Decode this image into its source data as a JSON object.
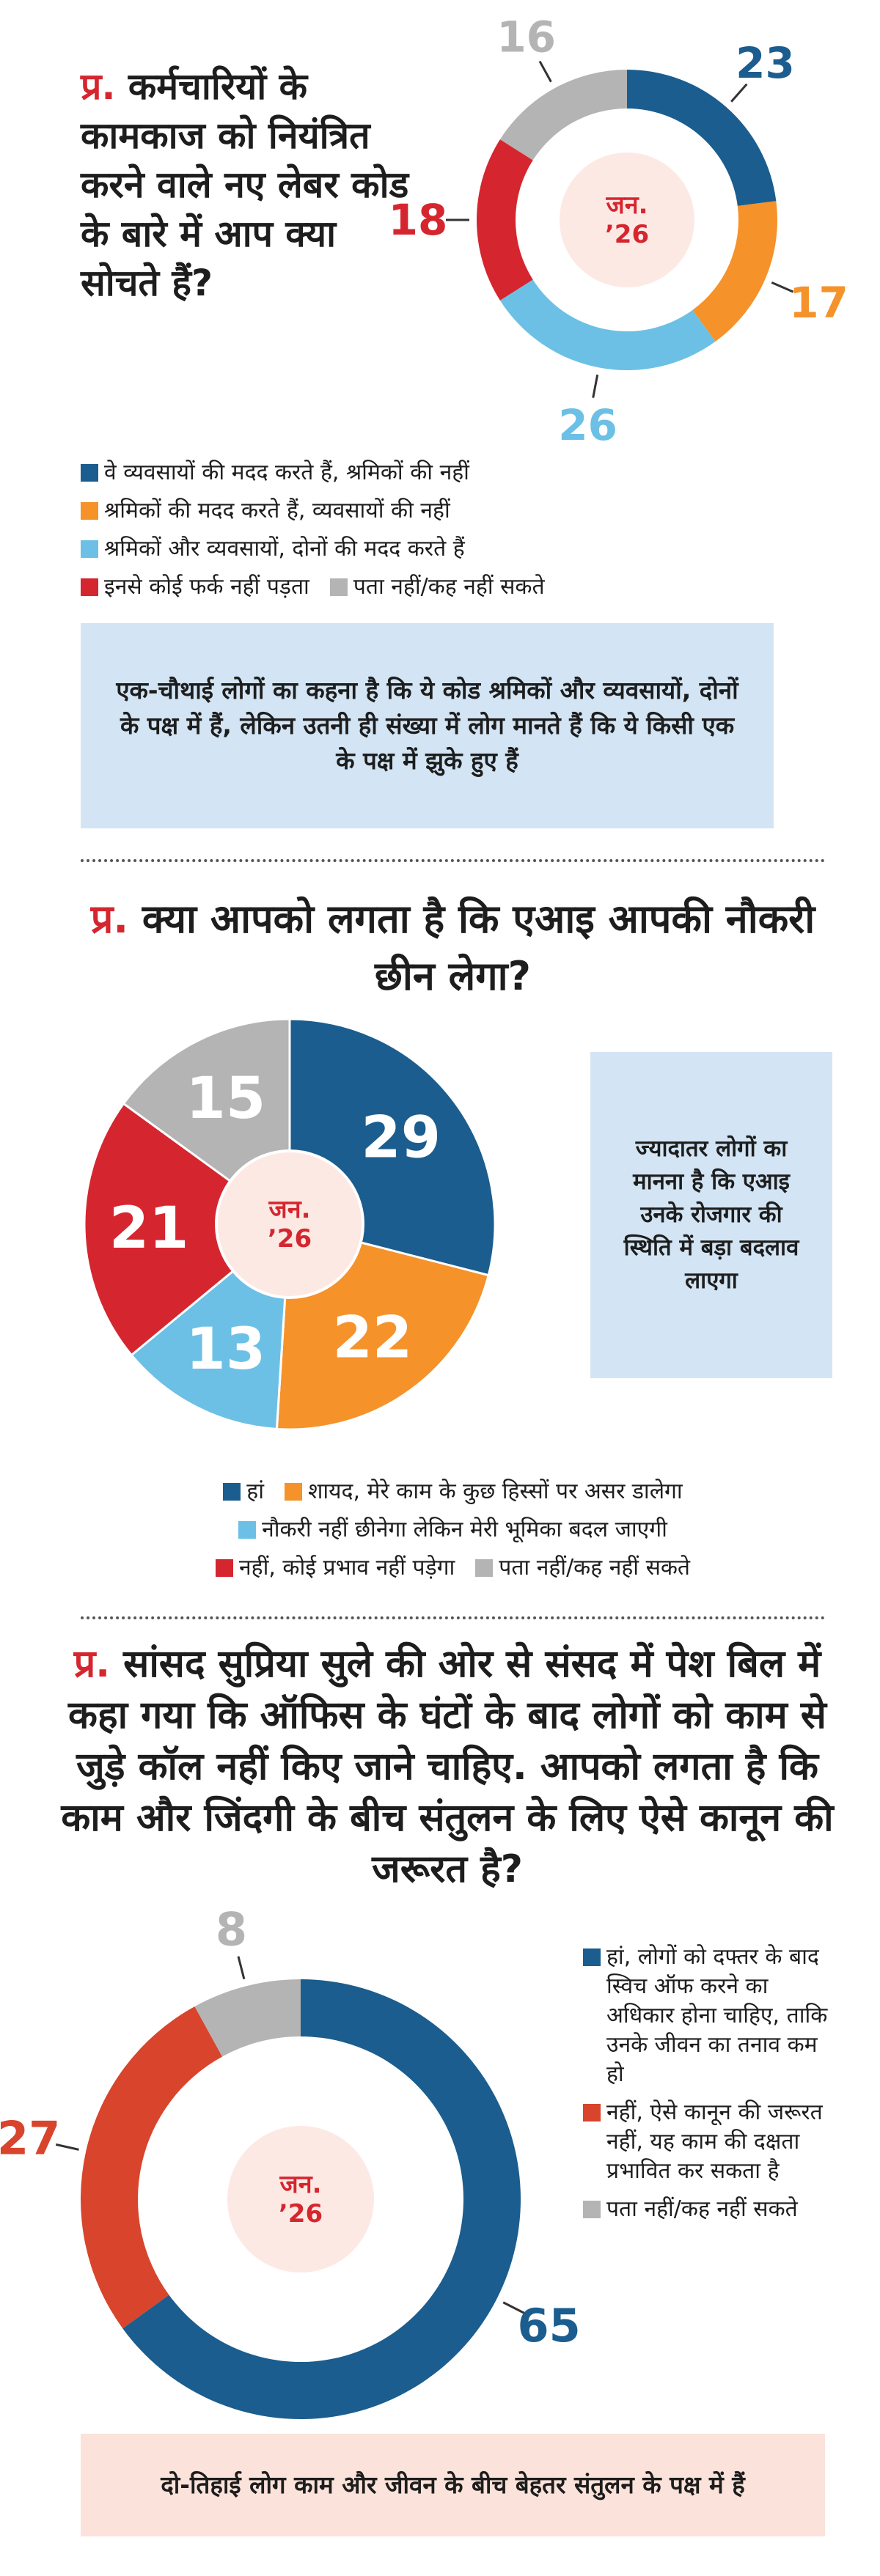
{
  "chart_data": [
    {
      "type": "donut",
      "question_prefix": "प्र.",
      "title": "कर्मचारियों के कामकाज को नियंत्रित करने वाले नए लेबर कोड के बारे में आप क्या सोचते हैं?",
      "center_label": [
        "जन.",
        "’26"
      ],
      "categories": [
        "वे व्यवसायों की मदद करते हैं, श्रमिकों की नहीं",
        "श्रमिकों की मदद करते हैं, व्यवसायों की नहीं",
        "श्रमिकों और व्यवसायों, दोनों की मदद करते हैं",
        "इनसे कोई फर्क नहीं पड़ता",
        "पता नहीं/कह नहीं सकते"
      ],
      "values": [
        23,
        17,
        26,
        18,
        16
      ],
      "colors": [
        "#1b5d8e",
        "#f5922a",
        "#6cc0e5",
        "#d5262f",
        "#b4b4b4"
      ],
      "note": "एक-चौथाई लोगों का कहना है कि ये कोड श्रमिकों और व्यवसायों, दोनों के पक्ष में हैं, लेकिन उतनी ही संख्या में लोग मानते हैं कि ये किसी एक के पक्ष में झुके हुए हैं"
    },
    {
      "type": "pie",
      "question_prefix": "प्र.",
      "title": "क्या आपको लगता है कि एआइ आपकी नौकरी छीन लेगा?",
      "center_label": [
        "जन.",
        "’26"
      ],
      "categories": [
        "हां",
        "शायद, मेरे काम के कुछ हिस्सों पर असर डालेगा",
        "नौकरी नहीं छीनेगा लेकिन मेरी भूमिका बदल जाएगी",
        "नहीं, कोई प्रभाव नहीं पड़ेगा",
        "पता नहीं/कह नहीं सकते"
      ],
      "values": [
        29,
        22,
        13,
        21,
        15
      ],
      "colors": [
        "#1b5d8e",
        "#f5922a",
        "#6cc0e5",
        "#d5262f",
        "#b4b4b4"
      ],
      "note": "ज्यादातर लोगों का मानना है कि एआइ उनके रोजगार की स्थिति में बड़ा बदलाव लाएगा"
    },
    {
      "type": "donut",
      "question_prefix": "प्र.",
      "title": "सांसद सुप्रिया सुले की ओर से संसद में पेश बिल में कहा गया कि ऑफिस के घंटों के बाद लोगों को काम से जुड़े कॉल नहीं किए जाने चाहिए. आपको लगता है कि काम और जिंदगी के बीच संतुलन के लिए ऐसे कानून की जरूरत है?",
      "center_label": [
        "जन.",
        "’26"
      ],
      "categories": [
        "हां, लोगों को दफ्तर के बाद स्विच ऑफ करने का अधिकार होना चाहिए, ताकि उनके जीवन का तनाव कम हो",
        "नहीं, ऐसे कानून की जरूरत नहीं, यह काम की दक्षता प्रभावित कर सकता है",
        "पता नहीं/कह नहीं सकते"
      ],
      "values": [
        65,
        27,
        8
      ],
      "colors": [
        "#1b5d8e",
        "#d8442c",
        "#b4b4b4"
      ],
      "note": "दो-तिहाई लोग काम और जीवन के बीच बेहतर संतुलन के पक्ष में हैं"
    }
  ]
}
